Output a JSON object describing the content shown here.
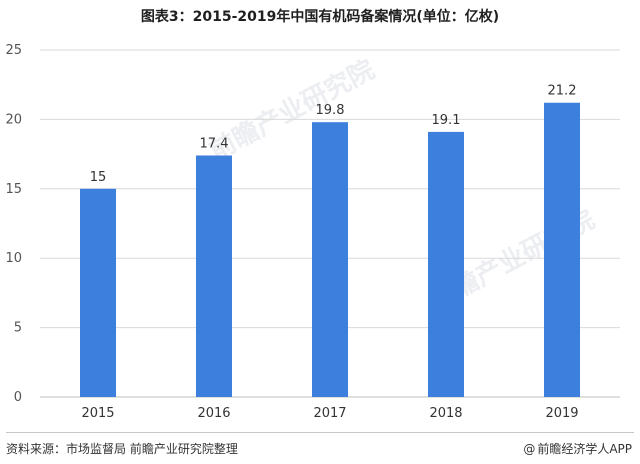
{
  "title": "图表3：2015-2019年中国有机码备案情况(单位：亿枚)",
  "source": "资料来源：市场监督局 前瞻产业研究院整理",
  "brand": {
    "icon": "at-icon",
    "icon_glyph": "@",
    "text": "前瞻经济学人APP"
  },
  "watermark_text": "前瞻产业研究院",
  "colors": {
    "bar": "#3d7fdc",
    "grid": "#d9d9d9",
    "axis": "#bfbfbf",
    "tick": "#555555",
    "label": "#333333"
  },
  "chart_data": {
    "type": "bar",
    "title": "图表3：2015-2019年中国有机码备案情况(单位：亿枚)",
    "categories": [
      "2015",
      "2016",
      "2017",
      "2018",
      "2019"
    ],
    "values": [
      15,
      17.4,
      19.8,
      19.1,
      21.2
    ],
    "data_labels": [
      "15",
      "17.4",
      "19.8",
      "19.1",
      "21.2"
    ],
    "yticks": [
      0,
      5,
      10,
      15,
      20,
      25
    ],
    "ylim": [
      0,
      25
    ],
    "xlabel": "",
    "ylabel": "",
    "grid": true,
    "legend": "none"
  }
}
